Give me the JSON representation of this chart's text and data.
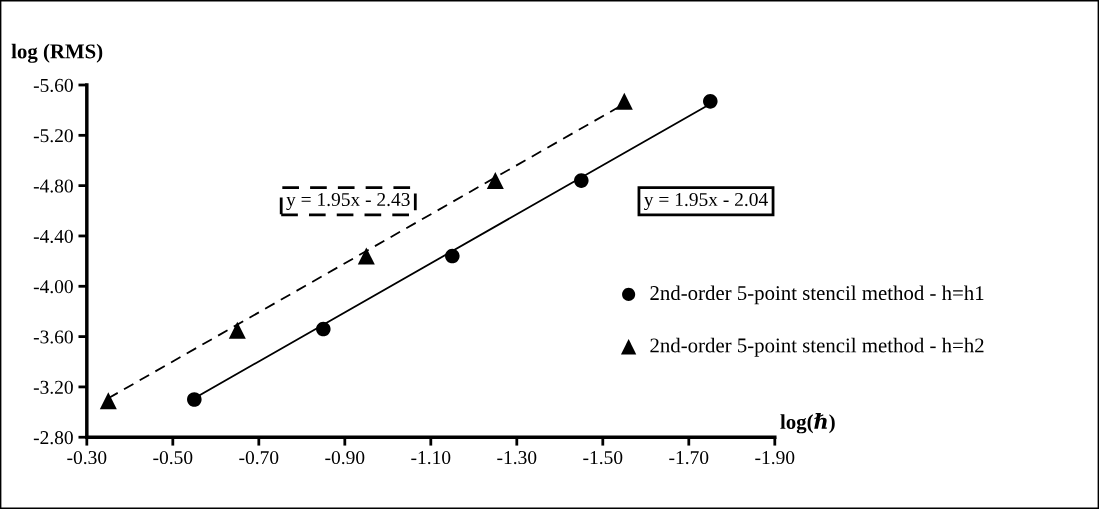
{
  "chart_data": {
    "type": "scatter",
    "xlabel": "log(ℏ)",
    "ylabel": "log (RMS)",
    "series": [
      {
        "name": "2nd-order 5-point stencil method - h=h1",
        "color": "#000000",
        "marker": "circle",
        "x": [
          -0.55,
          -0.85,
          -1.15,
          -1.45,
          -1.75
        ],
        "values": [
          -3.1,
          -3.66,
          -4.24,
          -4.84,
          -5.47
        ]
      },
      {
        "name": "2nd-order 5-point stencil method - h=h2",
        "color": "#000000",
        "marker": "triangle",
        "x": [
          -0.35,
          -0.65,
          -0.95,
          -1.25,
          -1.55
        ],
        "values": [
          -3.09,
          -3.65,
          -4.24,
          -4.84,
          -5.47
        ]
      },
      {
        "type": "line",
        "color": "#000000",
        "line_style": "solid",
        "marker": "none",
        "x": [
          -0.55,
          -1.75
        ],
        "values": [
          -3.11,
          -5.45
        ]
      },
      {
        "type": "line",
        "color": "#000000",
        "line_style": "dashed",
        "marker": "none",
        "x": [
          -0.35,
          -1.55
        ],
        "values": [
          -3.11,
          -5.45
        ]
      }
    ],
    "annotations": [
      "y = 1.95x - 2.43",
      "y = 1.95x - 2.04"
    ],
    "xlim": [
      -0.3,
      -1.9
    ],
    "ylim": [
      -2.8,
      -5.6
    ],
    "xticks": [
      {
        "value": -0.3,
        "label": "-0.30"
      },
      {
        "value": -0.5,
        "label": "-0.50"
      },
      {
        "value": -0.7,
        "label": "-0.70"
      },
      {
        "value": -0.9,
        "label": "-0.90"
      },
      {
        "value": -1.1,
        "label": "-1.10"
      },
      {
        "value": -1.3,
        "label": "-1.30"
      },
      {
        "value": -1.5,
        "label": "-1.50"
      },
      {
        "value": -1.7,
        "label": "-1.70"
      },
      {
        "value": -1.9,
        "label": "-1.90"
      }
    ],
    "yticks": [
      {
        "value": -2.8,
        "label": "-2.80"
      },
      {
        "value": -3.2,
        "label": "-3.20"
      },
      {
        "value": -3.6,
        "label": "-3.60"
      },
      {
        "value": -4.0,
        "label": "-4.00"
      },
      {
        "value": -4.4,
        "label": "-4.40"
      },
      {
        "value": -4.8,
        "label": "-4.80"
      },
      {
        "value": -5.2,
        "label": "-5.20"
      },
      {
        "value": -5.6,
        "label": "-5.60"
      }
    ],
    "grid": false,
    "legend": "right"
  }
}
